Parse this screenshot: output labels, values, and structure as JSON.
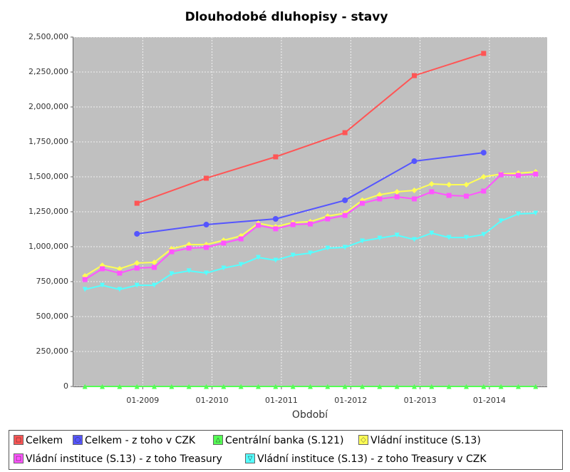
{
  "chart_data": {
    "type": "line",
    "title": "Dlouhodobé dluhopisy - stavy",
    "x_label": "Období",
    "x": [
      "2008-03",
      "2008-06",
      "2008-09",
      "2008-12",
      "2009-03",
      "2009-06",
      "2009-09",
      "2009-12",
      "2010-03",
      "2010-06",
      "2010-09",
      "2010-12",
      "2011-03",
      "2011-06",
      "2011-09",
      "2011-12",
      "2012-03",
      "2012-06",
      "2012-09",
      "2012-12",
      "2013-03",
      "2013-06",
      "2013-09",
      "2013-12",
      "2014-03",
      "2014-06",
      "2014-09"
    ],
    "xlim": [
      "2008-01",
      "2014-11"
    ],
    "xticks": [
      {
        "value": "2009-01",
        "label": "01-2009"
      },
      {
        "value": "2010-01",
        "label": "01-2010"
      },
      {
        "value": "2011-01",
        "label": "01-2011"
      },
      {
        "value": "2012-01",
        "label": "01-2012"
      },
      {
        "value": "2013-01",
        "label": "01-2013"
      },
      {
        "value": "2014-01",
        "label": "01-2014"
      }
    ],
    "ylim": [
      0,
      2500000
    ],
    "yticks": [
      0,
      {
        "value": 250000,
        "label": "250,000"
      },
      {
        "value": 500000,
        "label": "500,000"
      },
      {
        "value": 750000,
        "label": "750,000"
      },
      {
        "value": 1000000,
        "label": "1,000,000"
      },
      {
        "value": 1250000,
        "label": "1,250,000"
      },
      {
        "value": 1500000,
        "label": "1,500,000"
      },
      {
        "value": 1750000,
        "label": "1,750,000"
      },
      {
        "value": 2000000,
        "label": "2,000,000"
      },
      {
        "value": 2250000,
        "label": "2,250,000"
      },
      {
        "value": 2500000,
        "label": "2,500,000"
      }
    ],
    "grid": true,
    "legend": "bottom",
    "series": [
      {
        "name": "Celkem",
        "color": "#ff5555",
        "marker": "square",
        "x": [
          "2008-12",
          "2009-12",
          "2010-12",
          "2011-12",
          "2012-12",
          "2013-12"
        ],
        "values": [
          1311000,
          1490000,
          1643000,
          1816000,
          2224000,
          2383000
        ]
      },
      {
        "name": "Celkem - z toho v CZK",
        "color": "#5555ff",
        "marker": "circle",
        "x": [
          "2008-12",
          "2009-12",
          "2010-12",
          "2011-12",
          "2012-12",
          "2013-12"
        ],
        "values": [
          1092000,
          1158000,
          1199000,
          1332000,
          1612000,
          1673000
        ]
      },
      {
        "name": "Centrální banka (S.121)",
        "color": "#55ff55",
        "marker": "triangle",
        "values": [
          0,
          0,
          0,
          0,
          0,
          0,
          0,
          0,
          0,
          0,
          0,
          0,
          0,
          0,
          0,
          0,
          0,
          0,
          0,
          0,
          0,
          0,
          0,
          0,
          0,
          0,
          0
        ]
      },
      {
        "name": "Vládní instituce (S.13)",
        "color": "#ffff55",
        "marker": "diamond",
        "values": [
          791000,
          867000,
          842000,
          883000,
          888000,
          985000,
          1015000,
          1015000,
          1046000,
          1077000,
          1168000,
          1143000,
          1173000,
          1179000,
          1219000,
          1240000,
          1332000,
          1372000,
          1393000,
          1403000,
          1449000,
          1444000,
          1444000,
          1500000,
          1520000,
          1526000,
          1536000
        ]
      },
      {
        "name": "Vládní instituce (S.13) - z toho Treasury",
        "color": "#ff55ff",
        "marker": "square",
        "values": [
          765000,
          842000,
          811000,
          847000,
          852000,
          964000,
          990000,
          995000,
          1026000,
          1056000,
          1153000,
          1128000,
          1158000,
          1163000,
          1199000,
          1224000,
          1311000,
          1342000,
          1357000,
          1342000,
          1393000,
          1367000,
          1362000,
          1398000,
          1515000,
          1510000,
          1520000
        ]
      },
      {
        "name": "Vládní instituce (S.13) - z toho Treasury v CZK",
        "color": "#55ffff",
        "marker": "triangle-down",
        "values": [
          694000,
          724000,
          694000,
          724000,
          724000,
          806000,
          827000,
          811000,
          847000,
          872000,
          923000,
          903000,
          939000,
          954000,
          990000,
          995000,
          1041000,
          1061000,
          1082000,
          1051000,
          1097000,
          1066000,
          1066000,
          1087000,
          1184000,
          1235000,
          1240000
        ]
      }
    ]
  }
}
